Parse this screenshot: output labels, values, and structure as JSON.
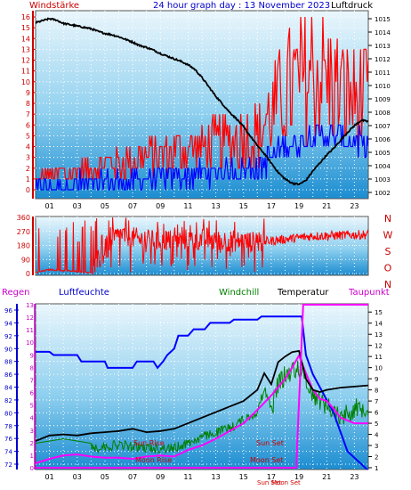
{
  "header": {
    "left_label": "Windstärke",
    "title": "24 hour graph day : 13 November 2023",
    "right_label": "Luftdruck"
  },
  "bottom_header": {
    "regen": "Regen",
    "luftfeuchte": "Luftfeuchte",
    "windchill": "Windchill",
    "temperatur": "Temperatur",
    "taupunkt": "Taupunkt"
  },
  "colors": {
    "wind_speed": "#ff0000",
    "wind_avg": "#0000ff",
    "pressure": "#000000",
    "direction": "#ff0000",
    "humidity": "#0000ff",
    "windchill": "#008000",
    "temperature": "#000000",
    "dewpoint": "#ff00ff",
    "panel_top": "#eaf6fc",
    "panel_bottom": "#1c8dd1"
  },
  "chart_data": [
    {
      "type": "line",
      "name": "wind-and-pressure",
      "x_ticks": [
        "01",
        "03",
        "05",
        "07",
        "09",
        "11",
        "13",
        "15",
        "17",
        "19",
        "21",
        "23"
      ],
      "y_left": {
        "label": "Windstärke",
        "ticks": [
          0,
          1,
          2,
          3,
          4,
          5,
          6,
          7,
          8,
          9,
          10,
          11,
          12,
          13,
          14,
          15,
          16
        ]
      },
      "y_right": {
        "label": "Luftdruck",
        "ticks": [
          1002,
          1003,
          1004,
          1005,
          1006,
          1007,
          1008,
          1009,
          1010,
          1011,
          1012,
          1013,
          1014,
          1015
        ]
      },
      "pressure_hpa": {
        "x": [
          0,
          0.5,
          1,
          1.5,
          2,
          2.5,
          3,
          3.5,
          4,
          4.5,
          5,
          5.5,
          6,
          6.5,
          7,
          7.5,
          8,
          8.5,
          9,
          9.5,
          10,
          10.5,
          11,
          11.5,
          12,
          12.5,
          13,
          13.5,
          14,
          14.5,
          15,
          15.5,
          16,
          16.5,
          17,
          17.5,
          18,
          18.5,
          19,
          19.5,
          20,
          20.5,
          21,
          21.5,
          22,
          22.5,
          23,
          23.5,
          24
        ],
        "y": [
          1014.7,
          1014.85,
          1015.0,
          1014.9,
          1014.65,
          1014.55,
          1014.45,
          1014.35,
          1014.25,
          1014.05,
          1013.9,
          1013.8,
          1013.65,
          1013.45,
          1013.25,
          1013.0,
          1012.85,
          1012.65,
          1012.4,
          1012.2,
          1012.0,
          1011.8,
          1011.55,
          1011.2,
          1010.6,
          1009.9,
          1009.2,
          1008.6,
          1008.0,
          1007.5,
          1006.9,
          1006.2,
          1005.5,
          1004.9,
          1004.2,
          1003.5,
          1003.0,
          1002.7,
          1002.6,
          1002.9,
          1003.6,
          1004.2,
          1004.8,
          1005.3,
          1005.9,
          1006.5,
          1007.0,
          1007.4,
          1007.3
        ]
      },
      "wind_gust_typical": {
        "x": [
          0,
          8,
          16,
          18,
          20,
          22,
          24
        ],
        "y": [
          1,
          3,
          5,
          9,
          11,
          9,
          8
        ]
      },
      "wind_avg_typical": {
        "x": [
          0,
          8,
          16,
          18,
          20,
          22,
          24
        ],
        "y": [
          0,
          1,
          2,
          4,
          5,
          5,
          4
        ]
      }
    },
    {
      "type": "line",
      "name": "wind-direction",
      "x_ticks": [
        "01",
        "03",
        "05",
        "07",
        "09",
        "11",
        "13",
        "15",
        "17",
        "19",
        "21",
        "23"
      ],
      "y_ticks": [
        0,
        90,
        180,
        270,
        360
      ],
      "y_right_labels": [
        "N",
        "W",
        "S",
        "O",
        "N"
      ],
      "typical": {
        "x": [
          0,
          1,
          4,
          6,
          8,
          12,
          16,
          20,
          24
        ],
        "y": [
          5,
          200,
          20,
          250,
          210,
          220,
          200,
          240,
          250
        ]
      }
    },
    {
      "type": "line",
      "name": "temperature-humidity",
      "x_ticks": [
        "01",
        "03",
        "05",
        "07",
        "09",
        "11",
        "13",
        "15",
        "17",
        "19",
        "21",
        "23"
      ],
      "y_left_ticks": [
        72,
        74,
        76,
        78,
        80,
        82,
        84,
        86,
        88,
        90,
        92,
        94,
        96
      ],
      "y_left_inner_ticks": [
        0,
        1,
        2,
        3,
        4,
        5,
        6,
        7,
        8,
        9,
        10,
        11,
        12,
        13
      ],
      "y_right_ticks": [
        1,
        2,
        3,
        4,
        5,
        6,
        7,
        8,
        9,
        10,
        11,
        12,
        13,
        14,
        15
      ],
      "events": {
        "sun_rise": "Sun Rise",
        "sun_set": "Sun Set",
        "moon_rise": "Moon Rise",
        "moon_set": "Moon Set",
        "sun_set_bottom": "Sun Set",
        "moon_set_bottom": "Moon Set"
      },
      "humidity_pct": {
        "x": [
          0,
          1,
          1.3,
          3,
          3.3,
          5,
          5.2,
          7,
          7.3,
          8.5,
          8.8,
          9.2,
          9.5,
          10,
          10.3,
          11,
          11.4,
          12.2,
          12.6,
          14,
          14.3,
          16,
          16.3,
          18,
          18.3,
          19.2,
          19.5,
          20,
          20.5,
          21,
          21.5,
          22,
          22.5,
          23,
          23.5,
          24
        ],
        "y": [
          89.5,
          89.5,
          89,
          89,
          88,
          88,
          87,
          87,
          88,
          88,
          87,
          88,
          89,
          90,
          92,
          92,
          93,
          93,
          94,
          94,
          94.5,
          94.5,
          95,
          95,
          95,
          95,
          89,
          86,
          84,
          82,
          80,
          77,
          74,
          73,
          72,
          71
        ]
      },
      "temperature_c": {
        "x": [
          0,
          1,
          2,
          3,
          4,
          5,
          6,
          7,
          8,
          9,
          10,
          11,
          12,
          13,
          14,
          15,
          16,
          16.5,
          17,
          17.5,
          18,
          18.5,
          19,
          19.5,
          20,
          20.5,
          21,
          22,
          23,
          24
        ],
        "y": [
          3.4,
          3.9,
          4.0,
          3.9,
          4.1,
          4.2,
          4.3,
          4.5,
          4.2,
          4.3,
          4.5,
          5.0,
          5.5,
          6.0,
          6.5,
          7.0,
          8.0,
          9.5,
          8.5,
          10.5,
          11.0,
          11.4,
          11.5,
          9.0,
          8.0,
          7.8,
          8.0,
          8.2,
          8.3,
          8.4
        ]
      },
      "windchill_c": {
        "x": [
          0,
          2,
          4,
          6,
          8,
          10,
          12,
          14,
          16,
          16.5,
          17,
          17.5,
          18,
          19,
          20,
          21,
          22,
          23,
          24
        ],
        "y": [
          3.2,
          3.6,
          3.2,
          3.5,
          3.2,
          3.2,
          4.2,
          5.0,
          6.5,
          8.5,
          7.0,
          9.5,
          10.2,
          11.0,
          8.5,
          7.5,
          6.5,
          7.2,
          7.4
        ]
      },
      "dewpoint_c": {
        "x": [
          0,
          1,
          2,
          3,
          4,
          5,
          6,
          7,
          8,
          9,
          10,
          11,
          12,
          13,
          14,
          15,
          16,
          17,
          18,
          18.5,
          19,
          19.5,
          20,
          20.5,
          21,
          21.5,
          22,
          23,
          24
        ],
        "y": [
          1.4,
          1.8,
          2.1,
          2.2,
          2.0,
          1.9,
          1.9,
          1.8,
          2.0,
          2.1,
          2.0,
          2.6,
          3.0,
          3.6,
          4.3,
          5.0,
          6.2,
          7.5,
          9.0,
          10.0,
          11.1,
          9.5,
          8.0,
          7.2,
          7.0,
          6.3,
          5.5,
          5.0,
          5.0
        ]
      },
      "rain_mm": {
        "x": [
          0,
          18.8,
          19.3,
          23.5,
          24
        ],
        "y": [
          0,
          0,
          13,
          13,
          13
        ]
      }
    }
  ]
}
